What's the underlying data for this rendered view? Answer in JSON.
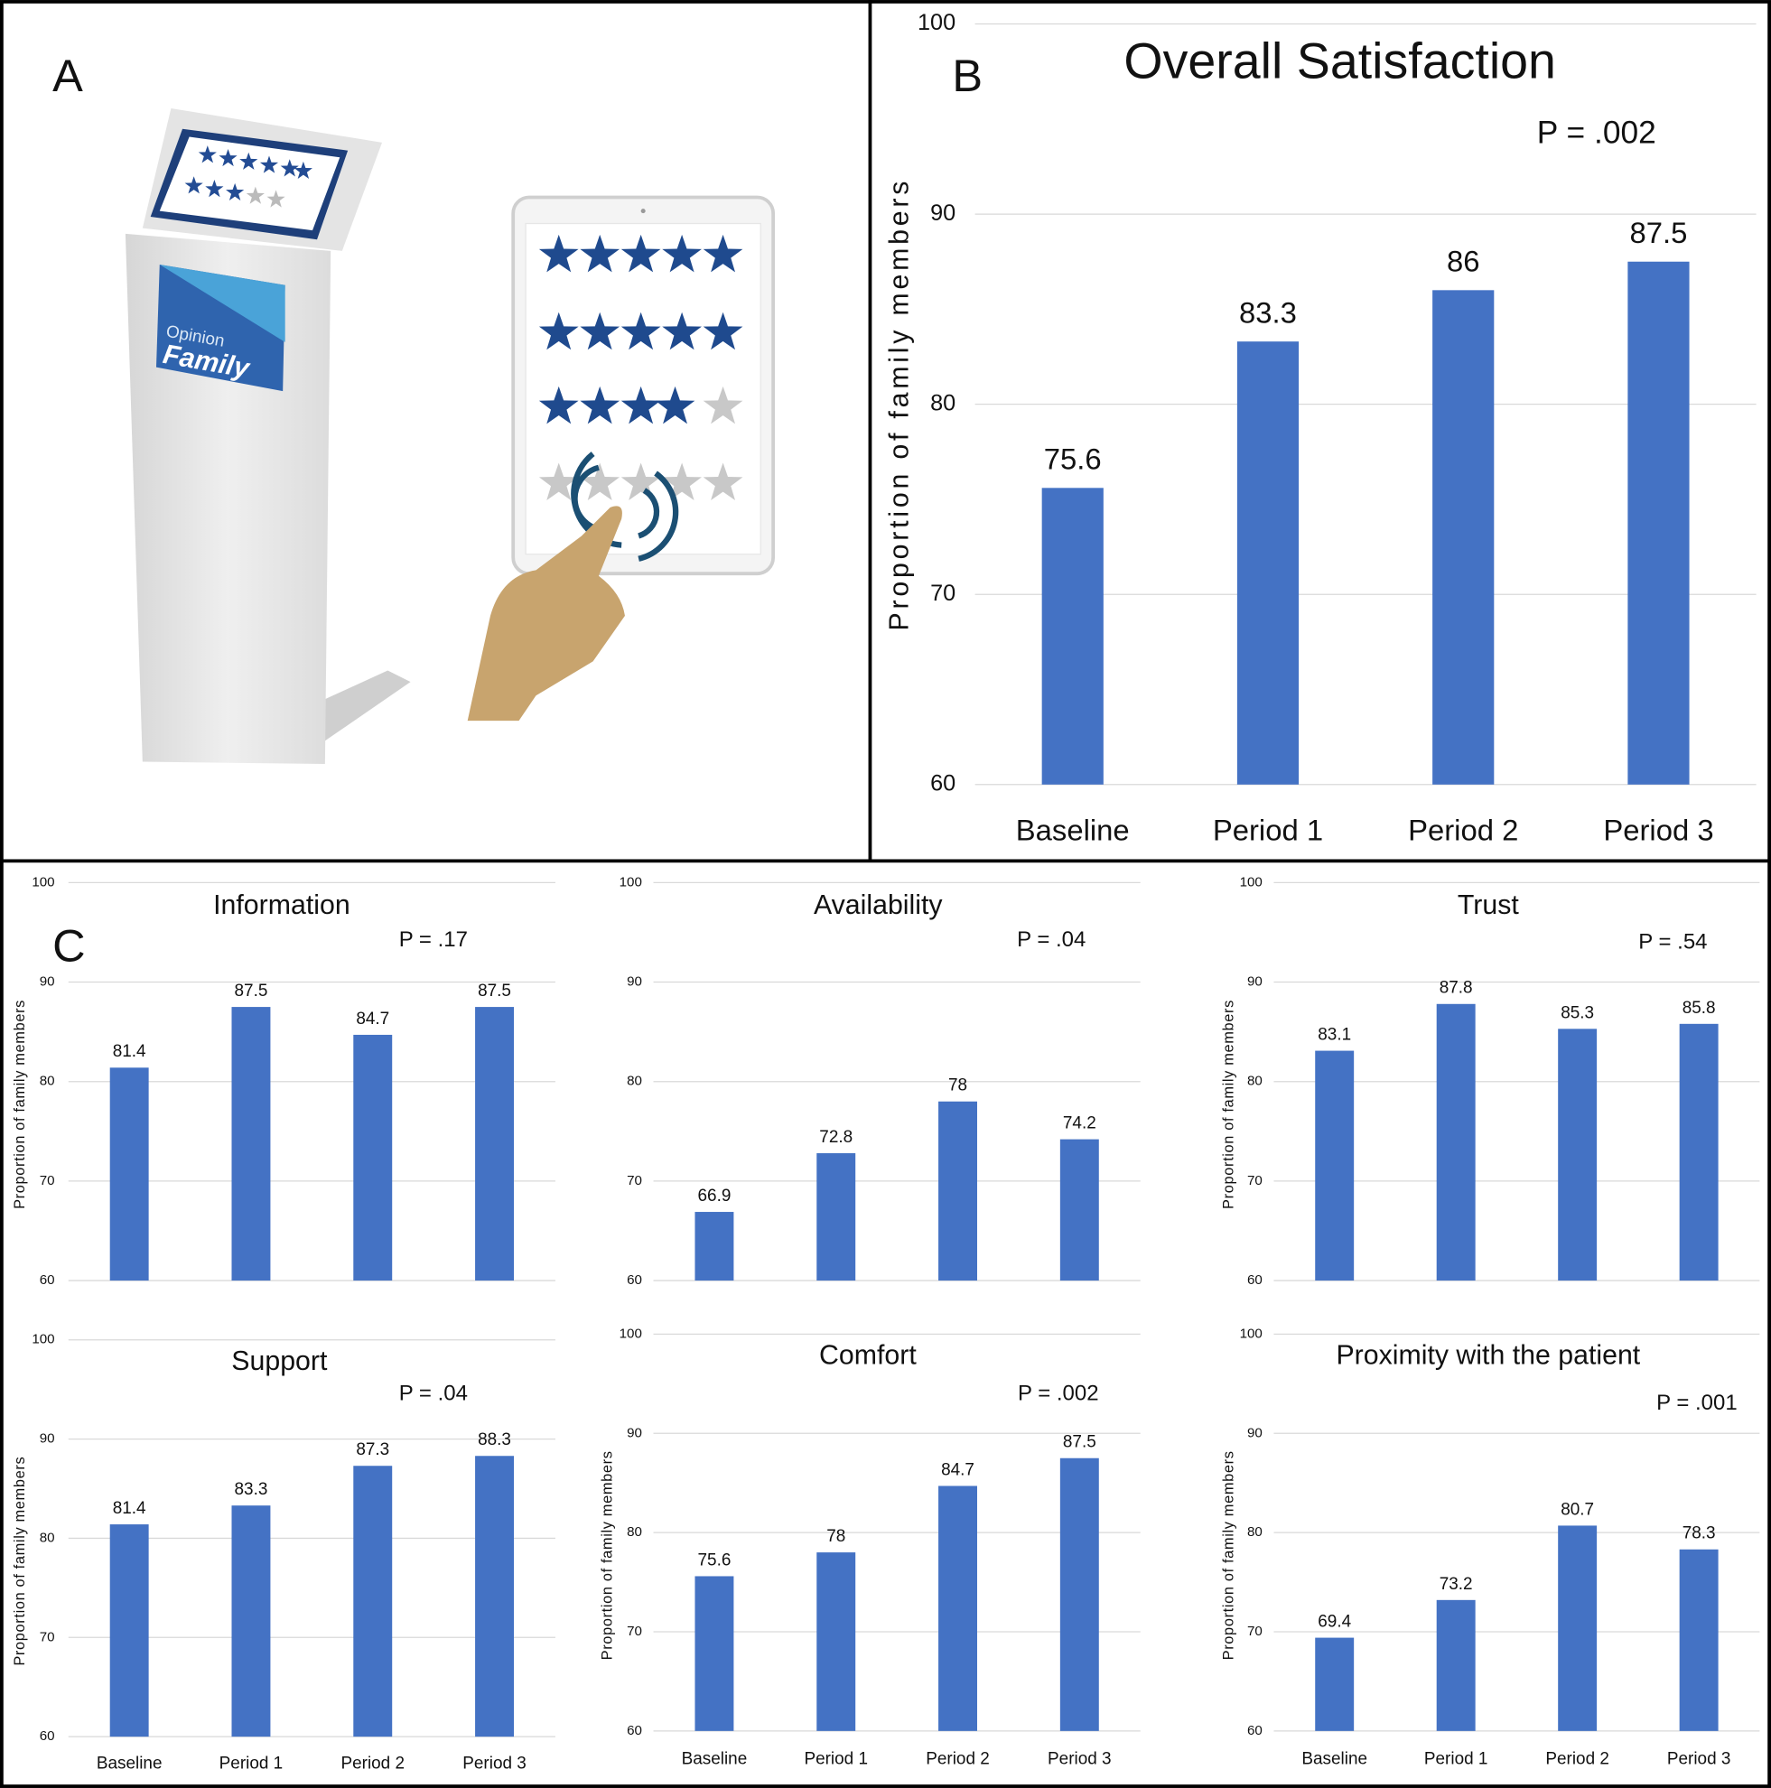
{
  "panel_labels": [
    "A",
    "B",
    "C"
  ],
  "illustration": {
    "brand_top": "Opinion",
    "brand_name": "Family"
  },
  "chart_data": [
    {
      "type": "bar",
      "title": "Overall Satisfaction",
      "annotation": "P = .002",
      "y_label": "Proportion of family members",
      "categories": [
        "Baseline",
        "Period 1",
        "Period 2",
        "Period 3"
      ],
      "values": [
        75.6,
        83.3,
        86,
        87.5
      ],
      "color": "#4472c4",
      "ylim": [
        60,
        100
      ],
      "yticks": [
        60,
        70,
        80,
        90,
        100
      ],
      "grid": true
    },
    {
      "type": "bar",
      "title": "Information",
      "annotation": "P = .17",
      "y_label": "Proportion of family members",
      "values": [
        81.4,
        87.5,
        84.7,
        87.5
      ],
      "color": "#4472c4",
      "ylim": [
        60,
        100
      ],
      "yticks": [
        60,
        70,
        80,
        90,
        100
      ],
      "grid": true
    },
    {
      "type": "bar",
      "title": "Availability",
      "annotation": "P = .04",
      "values": [
        66.9,
        72.8,
        78,
        74.2
      ],
      "color": "#4472c4",
      "ylim": [
        60,
        100
      ],
      "yticks": [
        60,
        70,
        80,
        90,
        100
      ],
      "grid": true
    },
    {
      "type": "bar",
      "title": "Trust",
      "annotation": "P = .54",
      "y_label": "Proportion of family members",
      "values": [
        83.1,
        87.8,
        85.3,
        85.8
      ],
      "color": "#4472c4",
      "ylim": [
        60,
        100
      ],
      "yticks": [
        60,
        70,
        80,
        90,
        100
      ],
      "grid": true
    },
    {
      "type": "bar",
      "title": "Support",
      "annotation": "P = .04",
      "y_label": "Proportion of family members",
      "categories": [
        "Baseline",
        "Period 1",
        "Period 2",
        "Period 3"
      ],
      "values": [
        81.4,
        83.3,
        87.3,
        88.3
      ],
      "color": "#4472c4",
      "ylim": [
        60,
        100
      ],
      "yticks": [
        60,
        70,
        80,
        90,
        100
      ],
      "grid": true
    },
    {
      "type": "bar",
      "title": "Comfort",
      "annotation": "P = .002",
      "y_label": "Proportion of family members",
      "categories": [
        "Baseline",
        "Period 1",
        "Period 2",
        "Period 3"
      ],
      "values": [
        75.6,
        78,
        84.7,
        87.5
      ],
      "color": "#4472c4",
      "ylim": [
        60,
        100
      ],
      "yticks": [
        60,
        70,
        80,
        90,
        100
      ],
      "grid": true
    },
    {
      "type": "bar",
      "title": "Proximity with the patient",
      "annotation": "P = .001",
      "y_label": "Proportion of family members",
      "categories": [
        "Baseline",
        "Period 1",
        "Period 2",
        "Period 3"
      ],
      "values": [
        69.4,
        73.2,
        80.7,
        78.3
      ],
      "color": "#4472c4",
      "ylim": [
        60,
        100
      ],
      "yticks": [
        60,
        70,
        80,
        90,
        100
      ],
      "grid": true
    }
  ]
}
